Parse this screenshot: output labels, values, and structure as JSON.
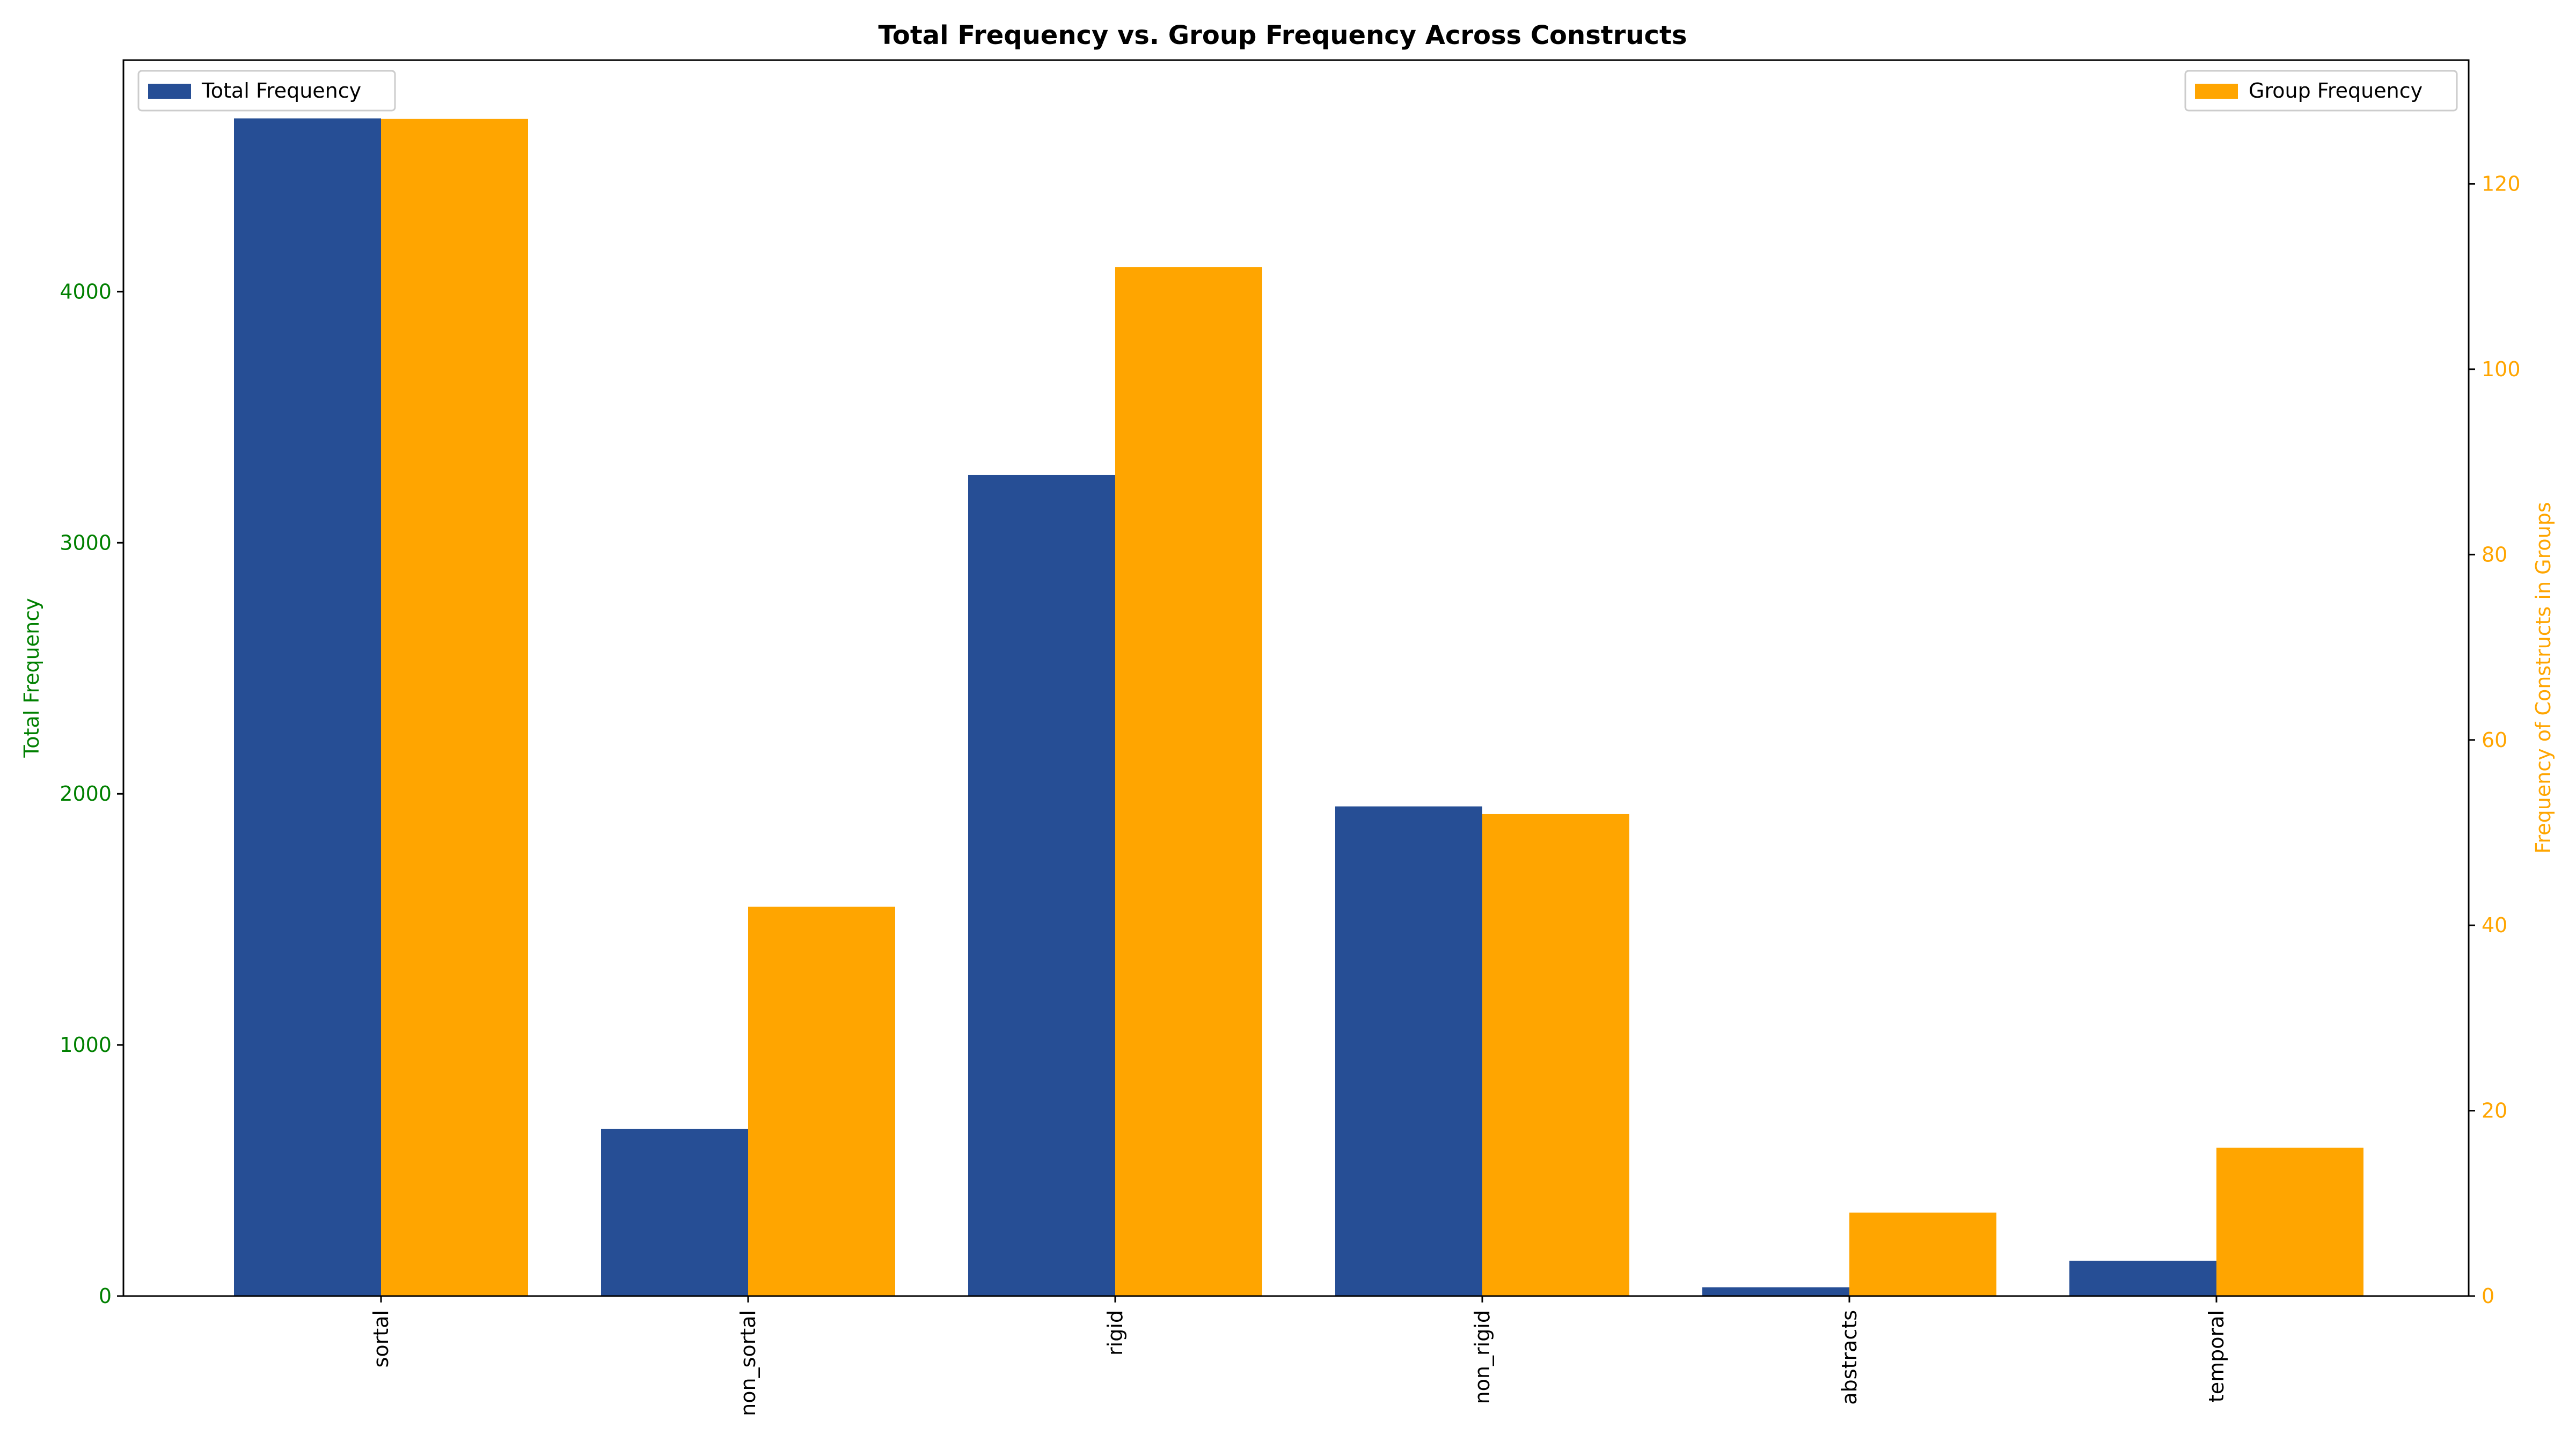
{
  "chart_data": {
    "type": "bar",
    "title": "Total Frequency vs. Group Frequency Across Constructs",
    "categories": [
      "sortal",
      "non_sortal",
      "rigid",
      "non_rigid",
      "abstracts",
      "temporal"
    ],
    "series": [
      {
        "name": "Total Frequency",
        "axis": "left",
        "color": "#264e95",
        "values": [
          4690,
          665,
          3270,
          1950,
          35,
          140
        ]
      },
      {
        "name": "Group Frequency",
        "axis": "right",
        "color": "#ffa500",
        "values": [
          127,
          42,
          111,
          52,
          9,
          16
        ]
      }
    ],
    "ylabel_left": "Total Frequency",
    "ylabel_right": "Frequency of Constructs in Groups",
    "ylim_left": [
      0,
      4922
    ],
    "ylim_right": [
      0,
      133.35
    ],
    "yticks_left": [
      0,
      1000,
      2000,
      3000,
      4000
    ],
    "yticks_right": [
      0,
      20,
      40,
      60,
      80,
      100,
      120
    ],
    "left_axis_color": "#008000",
    "right_axis_color": "#ffa500",
    "legend_left_placement": "upper-left",
    "legend_right_placement": "upper-right",
    "grid": false
  }
}
